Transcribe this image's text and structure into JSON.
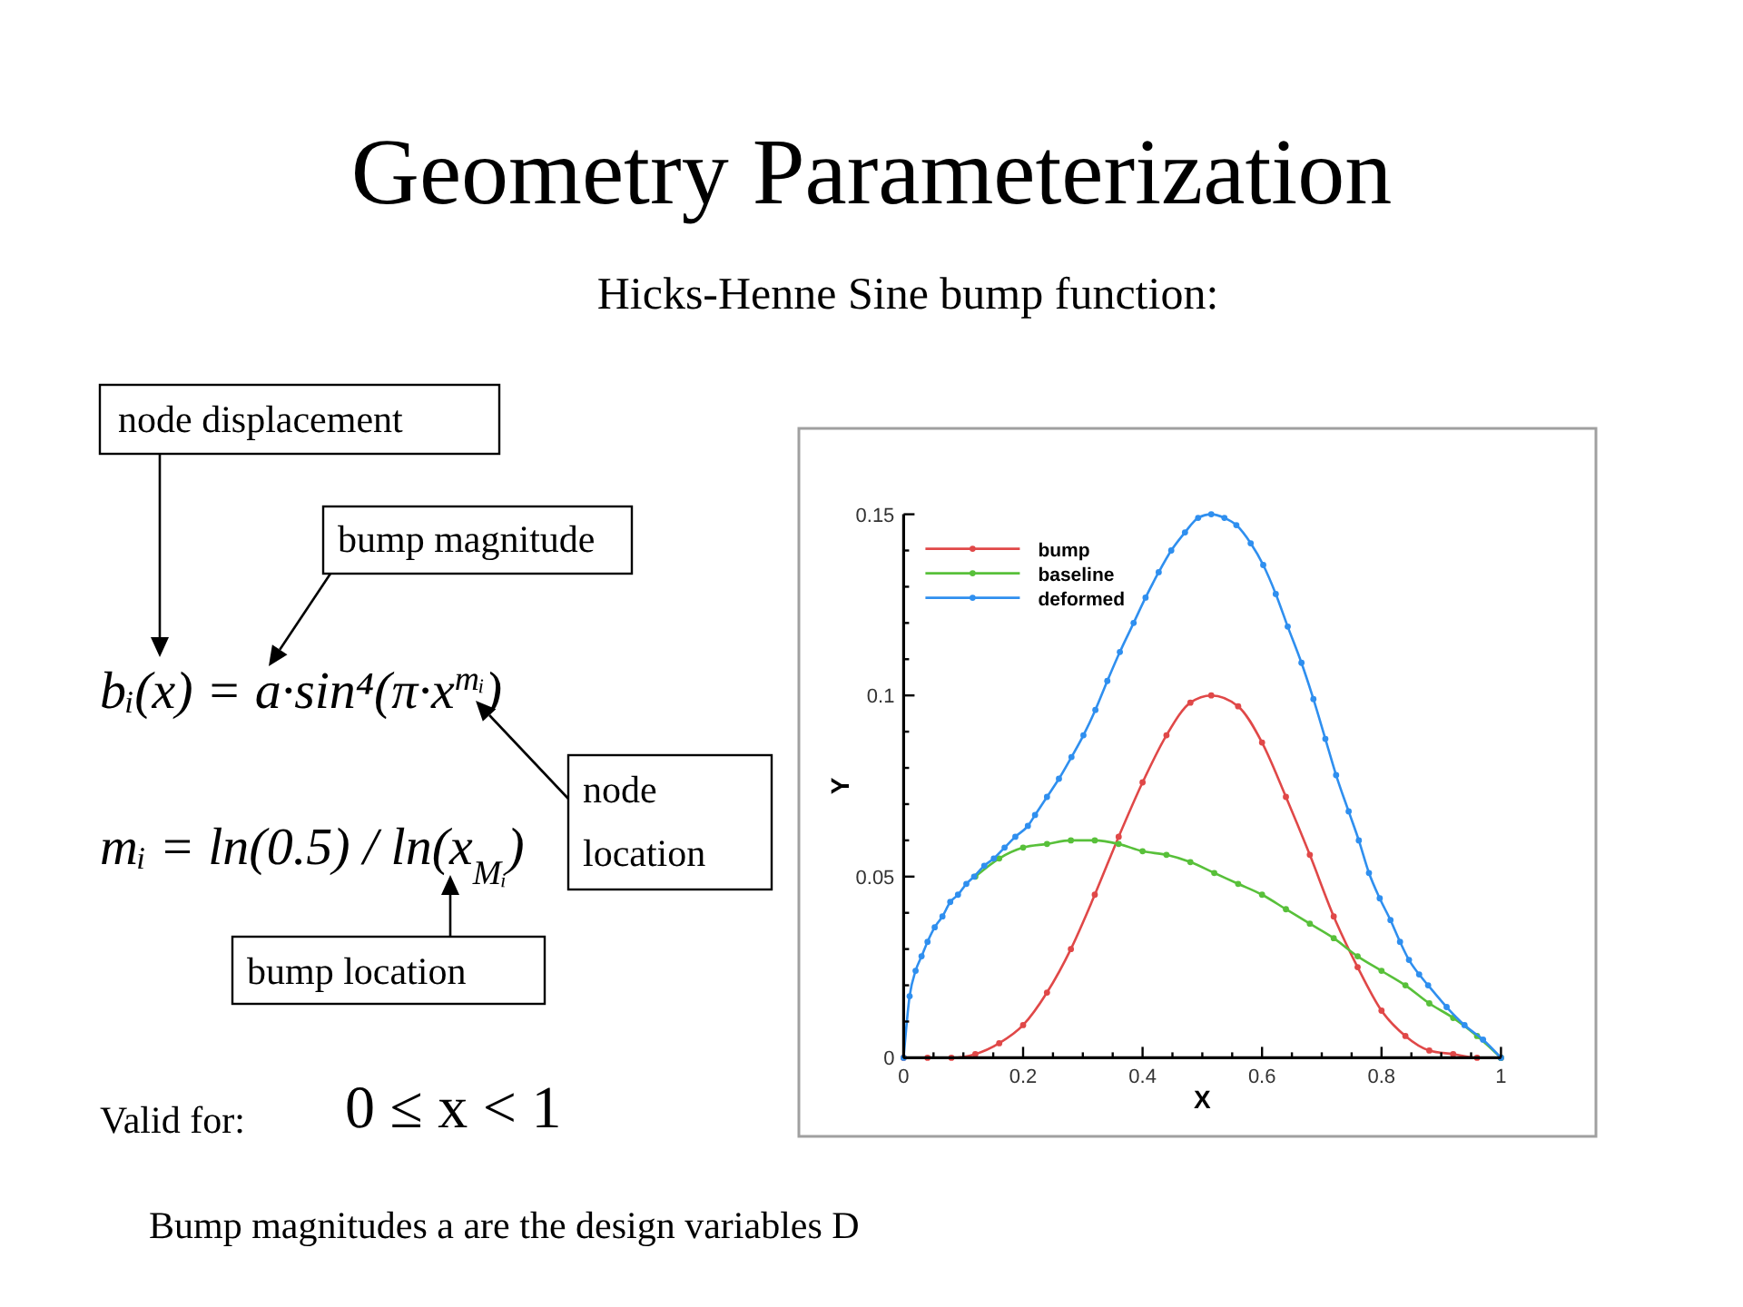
{
  "chart_data": {
    "type": "line",
    "title": "Geometry Parameterization",
    "subtitle": "Hicks-Henne Sine bump function:",
    "xlabel": "X",
    "ylabel": "Y",
    "xlim": [
      0,
      1
    ],
    "ylim": [
      0,
      0.15
    ],
    "xticks": [
      0,
      {
        "value": 0.05,
        "label": null
      },
      {
        "value": 0.1,
        "label": null
      },
      {
        "value": 0.15,
        "label": null
      },
      0.2,
      {
        "value": 0.25,
        "label": null
      },
      {
        "value": 0.3,
        "label": null
      },
      {
        "value": 0.35,
        "label": null
      },
      0.4,
      {
        "value": 0.45,
        "label": null
      },
      {
        "value": 0.5,
        "label": null
      },
      {
        "value": 0.55,
        "label": null
      },
      0.6,
      {
        "value": 0.65,
        "label": null
      },
      {
        "value": 0.7,
        "label": null
      },
      {
        "value": 0.75,
        "label": null
      },
      0.8,
      {
        "value": 0.85,
        "label": null
      },
      {
        "value": 0.9,
        "label": null
      },
      {
        "value": 0.95,
        "label": null
      },
      1
    ],
    "yticks": [
      0,
      {
        "value": 0.01,
        "label": null
      },
      {
        "value": 0.02,
        "label": null
      },
      {
        "value": 0.03,
        "label": null
      },
      {
        "value": 0.04,
        "label": null
      },
      0.05,
      {
        "value": 0.06,
        "label": null
      },
      {
        "value": 0.07,
        "label": null
      },
      {
        "value": 0.08,
        "label": null
      },
      {
        "value": 0.09,
        "label": null
      },
      0.1,
      {
        "value": 0.11,
        "label": null
      },
      {
        "value": 0.12,
        "label": null
      },
      {
        "value": 0.13,
        "label": null
      },
      {
        "value": 0.14,
        "label": null
      },
      0.15
    ],
    "legend": "top left",
    "marker": "circle",
    "line_style": "solid",
    "series": [
      {
        "name": "bump",
        "color": "#e04848",
        "x": [
          0,
          0.04,
          0.08,
          0.12,
          0.16,
          0.2,
          0.24,
          0.28,
          0.32,
          0.36,
          0.4,
          0.44,
          0.48,
          0.515,
          0.56,
          0.6,
          0.64,
          0.68,
          0.72,
          0.76,
          0.8,
          0.84,
          0.88,
          0.92,
          0.96,
          1
        ],
        "values": [
          0,
          0,
          0,
          0.001,
          0.004,
          0.009,
          0.018,
          0.03,
          0.045,
          0.061,
          0.076,
          0.089,
          0.098,
          0.1,
          0.097,
          0.087,
          0.072,
          0.056,
          0.039,
          0.025,
          0.013,
          0.006,
          0.002,
          0.001,
          0,
          0
        ]
      },
      {
        "name": "baseline",
        "color": "#58c03a",
        "x": [
          0.12,
          0.16,
          0.2,
          0.24,
          0.28,
          0.32,
          0.36,
          0.4,
          0.44,
          0.48,
          0.52,
          0.56,
          0.6,
          0.64,
          0.68,
          0.72,
          0.76,
          0.8,
          0.84,
          0.88,
          0.92,
          0.96,
          1
        ],
        "values": [
          0.05,
          0.055,
          0.058,
          0.059,
          0.06,
          0.06,
          0.059,
          0.057,
          0.056,
          0.054,
          0.051,
          0.048,
          0.045,
          0.041,
          0.037,
          0.033,
          0.028,
          0.024,
          0.02,
          0.015,
          0.011,
          0.006,
          0
        ]
      },
      {
        "name": "deformed",
        "color": "#2f8fef",
        "x": [
          0,
          0.01,
          0.02,
          0.03,
          0.04,
          0.052,
          0.065,
          0.078,
          0.091,
          0.105,
          0.118,
          0.135,
          0.151,
          0.169,
          0.187,
          0.208,
          0.22,
          0.24,
          0.26,
          0.281,
          0.301,
          0.321,
          0.341,
          0.362,
          0.385,
          0.405,
          0.427,
          0.448,
          0.471,
          0.493,
          0.515,
          0.537,
          0.557,
          0.581,
          0.602,
          0.623,
          0.643,
          0.666,
          0.686,
          0.706,
          0.724,
          0.745,
          0.762,
          0.779,
          0.797,
          0.815,
          0.831,
          0.846,
          0.863,
          0.878,
          0.909,
          0.939,
          0.97,
          1
        ],
        "values": [
          0,
          0.017,
          0.024,
          0.028,
          0.032,
          0.036,
          0.039,
          0.043,
          0.045,
          0.048,
          0.05,
          0.053,
          0.055,
          0.058,
          0.061,
          0.064,
          0.067,
          0.072,
          0.077,
          0.083,
          0.089,
          0.096,
          0.104,
          0.112,
          0.12,
          0.127,
          0.134,
          0.14,
          0.145,
          0.149,
          0.15,
          0.149,
          0.147,
          0.142,
          0.136,
          0.128,
          0.119,
          0.109,
          0.099,
          0.088,
          0.078,
          0.068,
          0.06,
          0.051,
          0.044,
          0.038,
          0.032,
          0.027,
          0.023,
          0.02,
          0.014,
          0.009,
          0.005,
          0
        ]
      }
    ],
    "annotations": [
      "node displacement",
      "bump magnitude",
      "node location",
      "bump location",
      "bᵢ(x) = a·sin⁴(π·x$^{mᵢ}$)",
      "mᵢ = ln(0.5) / ln(x$_{Mᵢ}$)",
      "Valid for:",
      "0 ≤ x < 1",
      "Bump magnitudes a are the design variables D"
    ]
  }
}
